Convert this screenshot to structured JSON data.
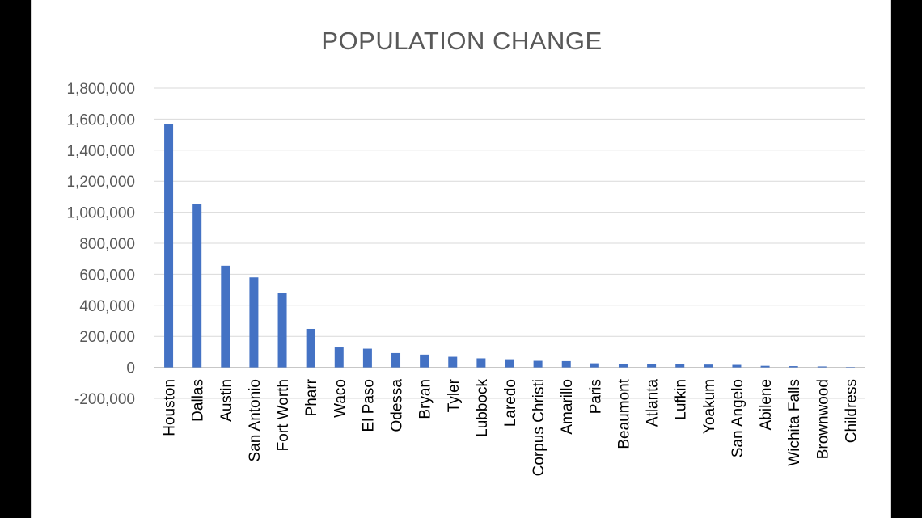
{
  "chart_data": {
    "type": "bar",
    "title": "POPULATION CHANGE",
    "xlabel": "",
    "ylabel": "",
    "ylim": [
      -200000,
      1800000
    ],
    "ytick_labels": [
      "1,800,000",
      "1,600,000",
      "1,400,000",
      "1,200,000",
      "1,000,000",
      "800,000",
      "600,000",
      "400,000",
      "200,000",
      "0",
      "-200,000"
    ],
    "ytick_values": [
      1800000,
      1600000,
      1400000,
      1200000,
      1000000,
      800000,
      600000,
      400000,
      200000,
      0,
      -200000
    ],
    "grid": true,
    "legend": "none",
    "bar_color": "#4472c4",
    "categories": [
      "Houston",
      "Dallas",
      "Austin",
      "San Antonio",
      "Fort Worth",
      "Pharr",
      "Waco",
      "El Paso",
      "Odessa",
      "Bryan",
      "Tyler",
      "Lubbock",
      "Laredo",
      "Corpus Christi",
      "Amarillo",
      "Paris",
      "Beaumont",
      "Atlanta",
      "Lufkin",
      "Yoakum",
      "San Angelo",
      "Abilene",
      "Wichita Falls",
      "Brownwood",
      "Childress"
    ],
    "values": [
      1570000,
      1050000,
      655000,
      580000,
      478000,
      248000,
      128000,
      120000,
      92000,
      82000,
      68000,
      58000,
      52000,
      42000,
      40000,
      26000,
      24000,
      23000,
      20000,
      18000,
      16000,
      10000,
      8000,
      6000,
      1000
    ]
  }
}
